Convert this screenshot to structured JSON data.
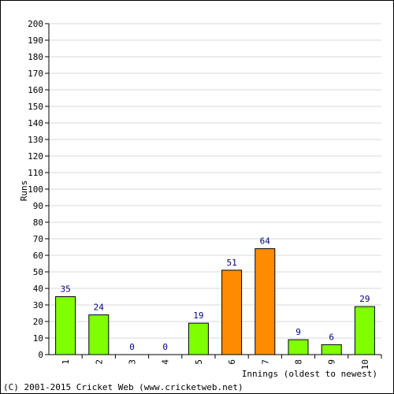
{
  "chart_data": {
    "type": "bar",
    "categories": [
      "1",
      "2",
      "3",
      "4",
      "5",
      "6",
      "7",
      "8",
      "9",
      "10"
    ],
    "values": [
      35,
      24,
      0,
      0,
      19,
      51,
      64,
      9,
      6,
      29
    ],
    "bar_colors": [
      "#80ff00",
      "#80ff00",
      "#80ff00",
      "#80ff00",
      "#80ff00",
      "#ff8c00",
      "#ff8c00",
      "#80ff00",
      "#80ff00",
      "#80ff00"
    ],
    "ylabel": "Runs",
    "xlabel": "Innings (oldest to newest)",
    "ylim": [
      0,
      200
    ],
    "yticks": [
      0,
      10,
      20,
      30,
      40,
      50,
      60,
      70,
      80,
      90,
      100,
      110,
      120,
      130,
      140,
      150,
      160,
      170,
      180,
      190,
      200
    ],
    "grid": true
  },
  "footer": {
    "copyright": "(C) 2001-2015 Cricket Web (www.cricketweb.net)"
  }
}
